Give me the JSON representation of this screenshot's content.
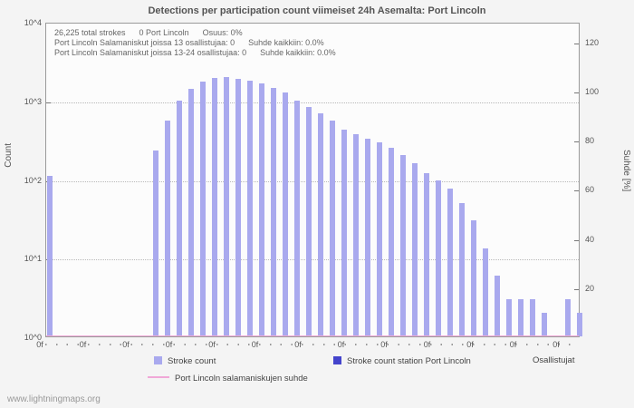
{
  "title": "Detections per participation count viimeiset 24h Asemalta: Port Lincoln",
  "annotations": {
    "line1": "26,225 total strokes      0 Port Lincoln      Osuus: 0%",
    "line2": "Port Lincoln Salamaniskut joissa 13 osallistujaa: 0      Suhde kaikkiin: 0.0%",
    "line3": "Port Lincoln Salamaniskut joissa 13-24 osallistujaa: 0      Suhde kaikkiin: 0.0%"
  },
  "axes": {
    "left_label": "Count",
    "right_label": "Suhde [%]",
    "x_label": "Osallistujat",
    "left_ticks": [
      "10^4",
      "10^3",
      "10^2",
      "10^1",
      "10^0"
    ],
    "right_ticks": [
      "120",
      "100",
      "80",
      "60",
      "40",
      "20"
    ],
    "x_ticks": [
      "0f",
      "0f",
      "0f",
      "0f",
      "0f",
      "0f",
      "0f",
      "0f",
      "0f",
      "0f",
      "0f",
      "0f",
      "0f"
    ]
  },
  "footer": "www.lightningmaps.org",
  "colors": {
    "stroke_count_bar": "#a9a9ee",
    "station_bar": "#4444cc",
    "ratio_line": "#f0a8d8"
  },
  "chart_data": {
    "type": "bar",
    "title": "Detections per participation count viimeiset 24h Asemalta: Port Lincoln",
    "xlabel": "Osallistujat",
    "ylabel": "Count",
    "y2label": "Suhde [%]",
    "yscale": "log",
    "ylim": [
      1,
      10000
    ],
    "y2lim": [
      0,
      128
    ],
    "grid": true,
    "legend_position": "bottom",
    "series": [
      {
        "name": "Stroke count",
        "type": "bar",
        "color": "#a9a9ee",
        "points_format": "[participation_slot, stroke_count]",
        "points": [
          [
            0,
            110
          ],
          [
            9,
            230
          ],
          [
            10,
            560
          ],
          [
            11,
            1000
          ],
          [
            12,
            1400
          ],
          [
            13,
            1750
          ],
          [
            14,
            1950
          ],
          [
            15,
            2000
          ],
          [
            16,
            1900
          ],
          [
            17,
            1800
          ],
          [
            18,
            1650
          ],
          [
            19,
            1450
          ],
          [
            20,
            1250
          ],
          [
            21,
            1000
          ],
          [
            22,
            820
          ],
          [
            23,
            680
          ],
          [
            24,
            550
          ],
          [
            25,
            430
          ],
          [
            26,
            370
          ],
          [
            27,
            330
          ],
          [
            28,
            290
          ],
          [
            29,
            250
          ],
          [
            30,
            200
          ],
          [
            31,
            160
          ],
          [
            32,
            120
          ],
          [
            33,
            95
          ],
          [
            34,
            75
          ],
          [
            35,
            50
          ],
          [
            36,
            30
          ],
          [
            37,
            13
          ],
          [
            38,
            6
          ],
          [
            39,
            3
          ],
          [
            40,
            3
          ],
          [
            41,
            3
          ],
          [
            42,
            2
          ],
          [
            44,
            3
          ],
          [
            45,
            2
          ]
        ]
      },
      {
        "name": "Stroke count station Port Lincoln",
        "type": "bar",
        "color": "#4444cc",
        "points": []
      },
      {
        "name": "Port Lincoln salamaniskujen suhde",
        "type": "line",
        "axis": "right",
        "color": "#f0a8d8",
        "constant_value": 0
      }
    ]
  }
}
